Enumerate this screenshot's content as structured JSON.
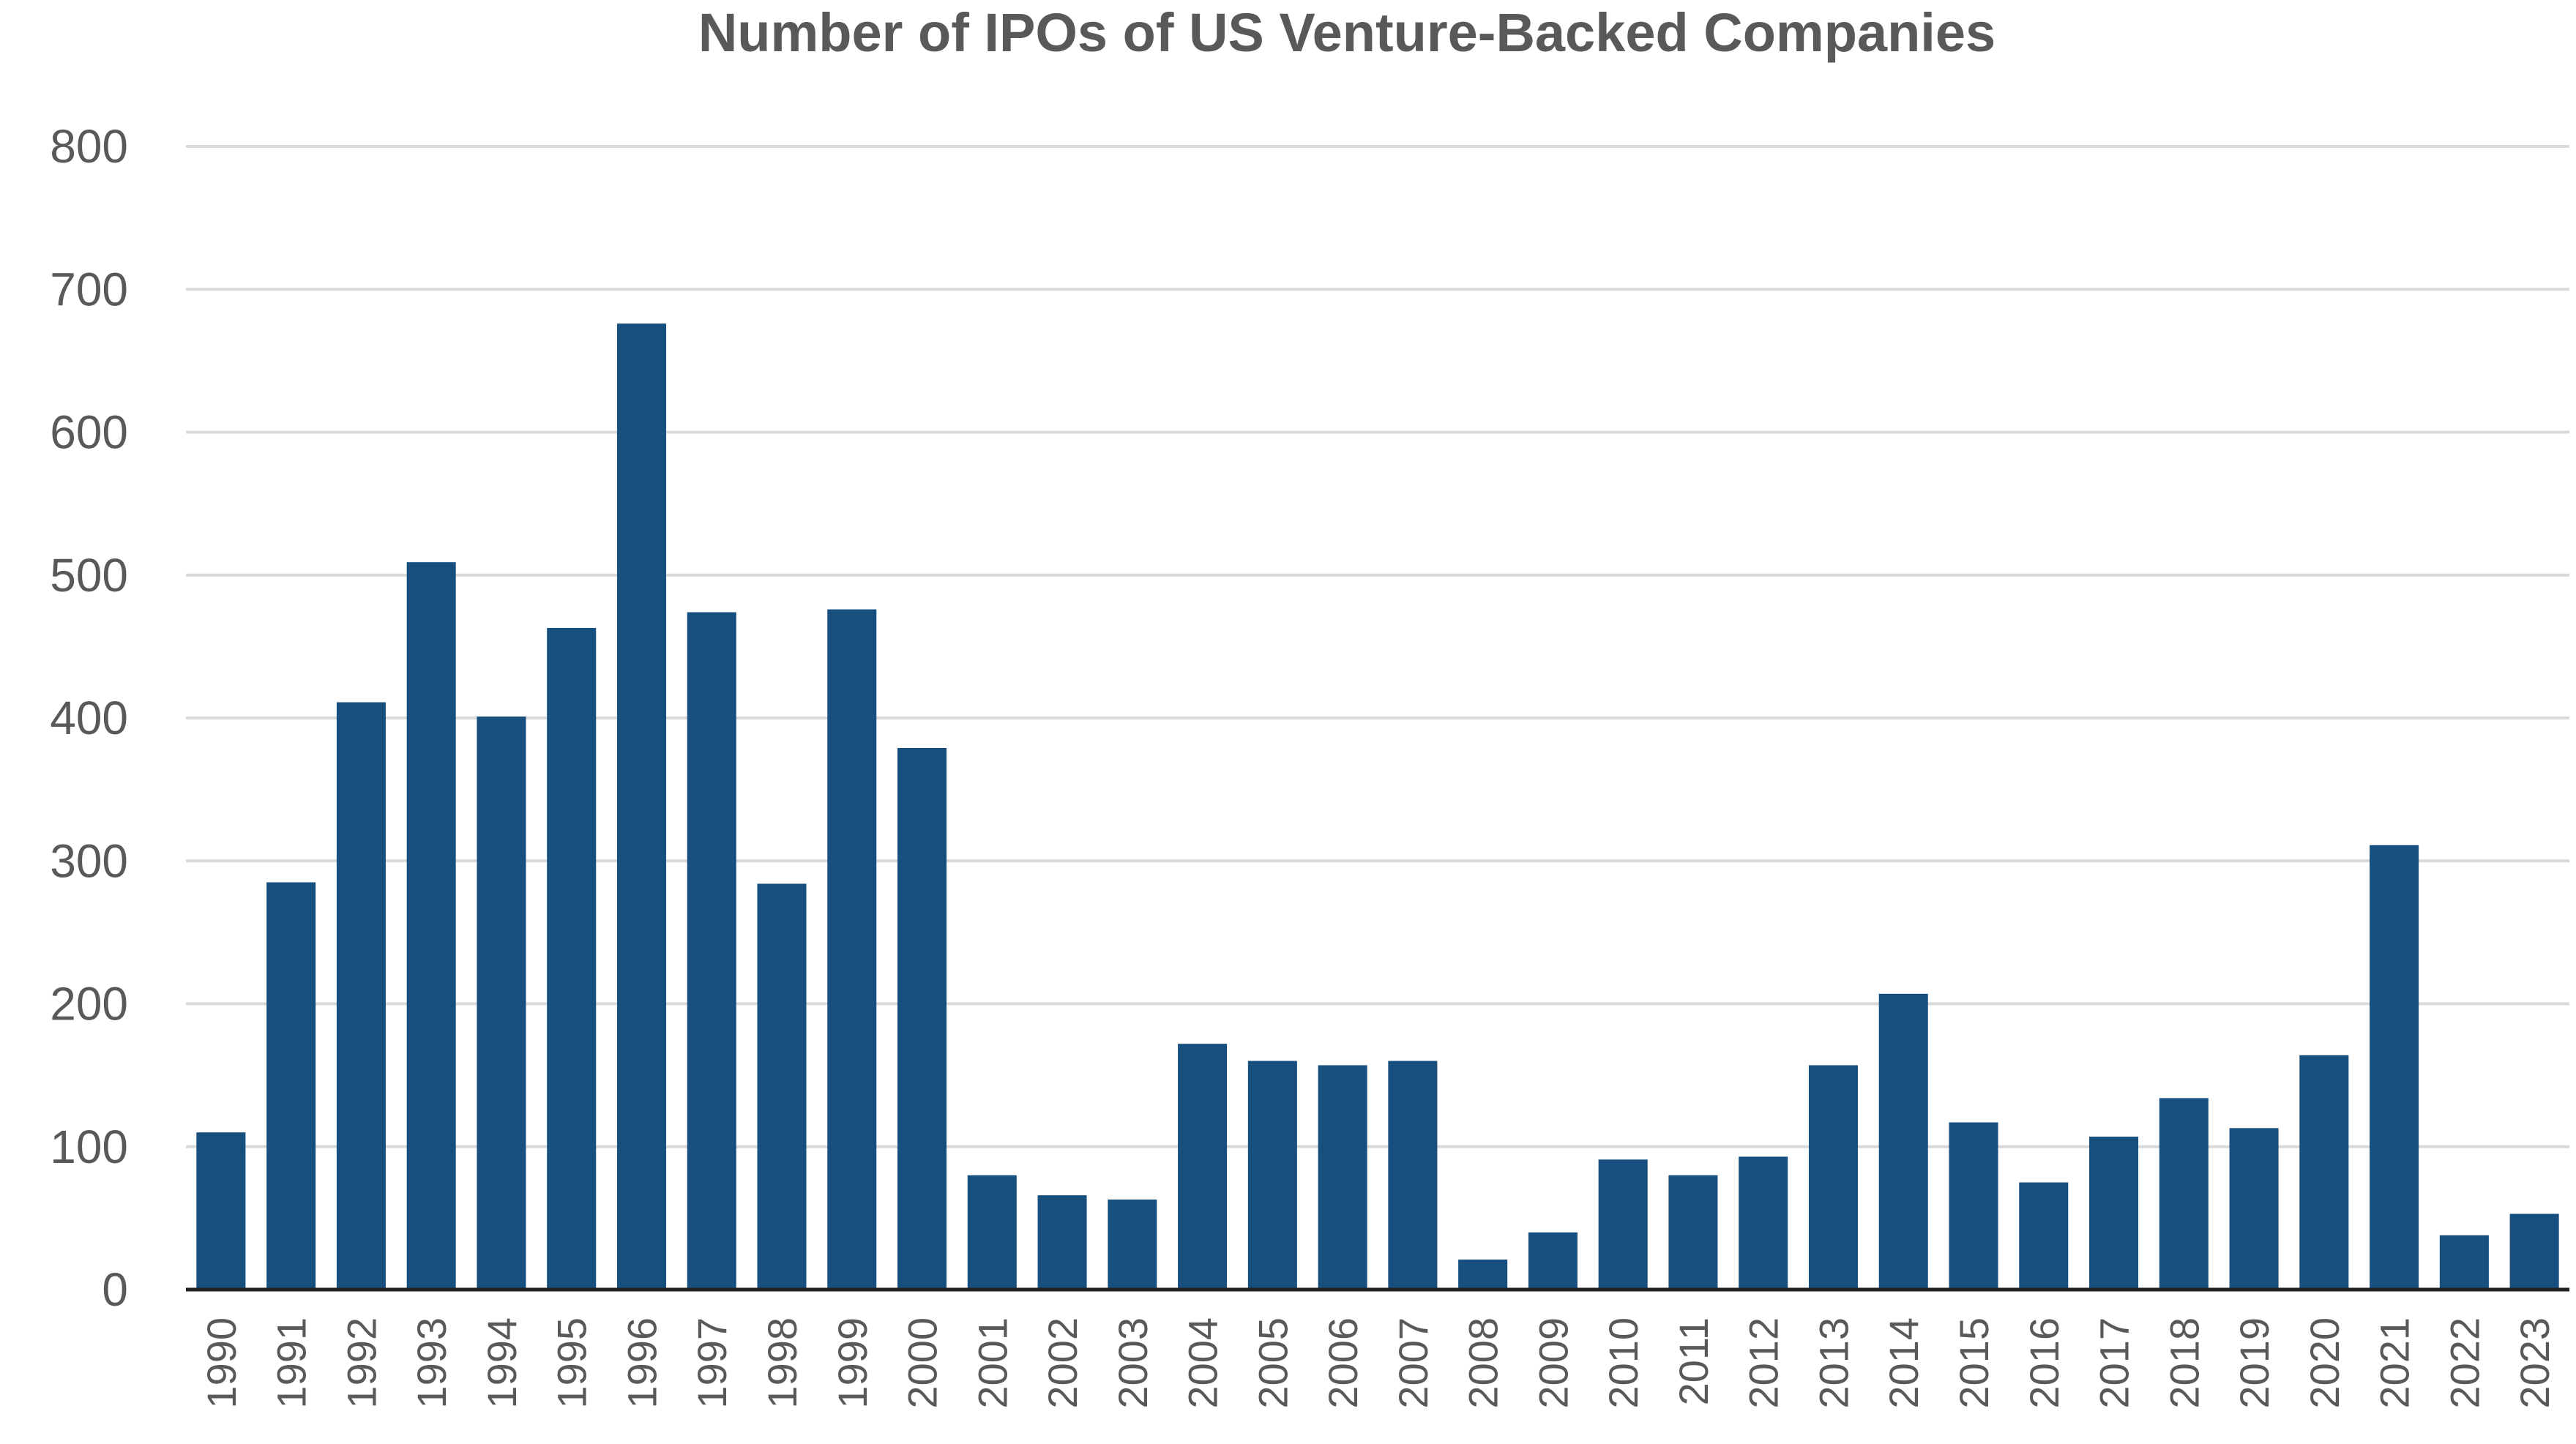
{
  "chart_data": {
    "type": "bar",
    "title": "Number of IPOs of US Venture-Backed Companies",
    "xlabel": "",
    "ylabel": "",
    "ylim": [
      0,
      800
    ],
    "yticks": [
      "0",
      "100",
      "200",
      "300",
      "400",
      "500",
      "600",
      "700",
      "800"
    ],
    "grid": true,
    "color": "#174f7e",
    "categories": [
      "1990",
      "1991",
      "1992",
      "1993",
      "1994",
      "1995",
      "1996",
      "1997",
      "1998",
      "1999",
      "2000",
      "2001",
      "2002",
      "2003",
      "2004",
      "2005",
      "2006",
      "2007",
      "2008",
      "2009",
      "2010",
      "2011",
      "2012",
      "2013",
      "2014",
      "2015",
      "2016",
      "2017",
      "2018",
      "2019",
      "2020",
      "2021",
      "2022",
      "2023"
    ],
    "values": [
      110,
      285,
      411,
      509,
      401,
      463,
      676,
      474,
      284,
      476,
      379,
      80,
      66,
      63,
      172,
      160,
      157,
      160,
      21,
      40,
      91,
      80,
      93,
      157,
      207,
      117,
      75,
      107,
      134,
      113,
      164,
      311,
      38,
      53
    ]
  }
}
